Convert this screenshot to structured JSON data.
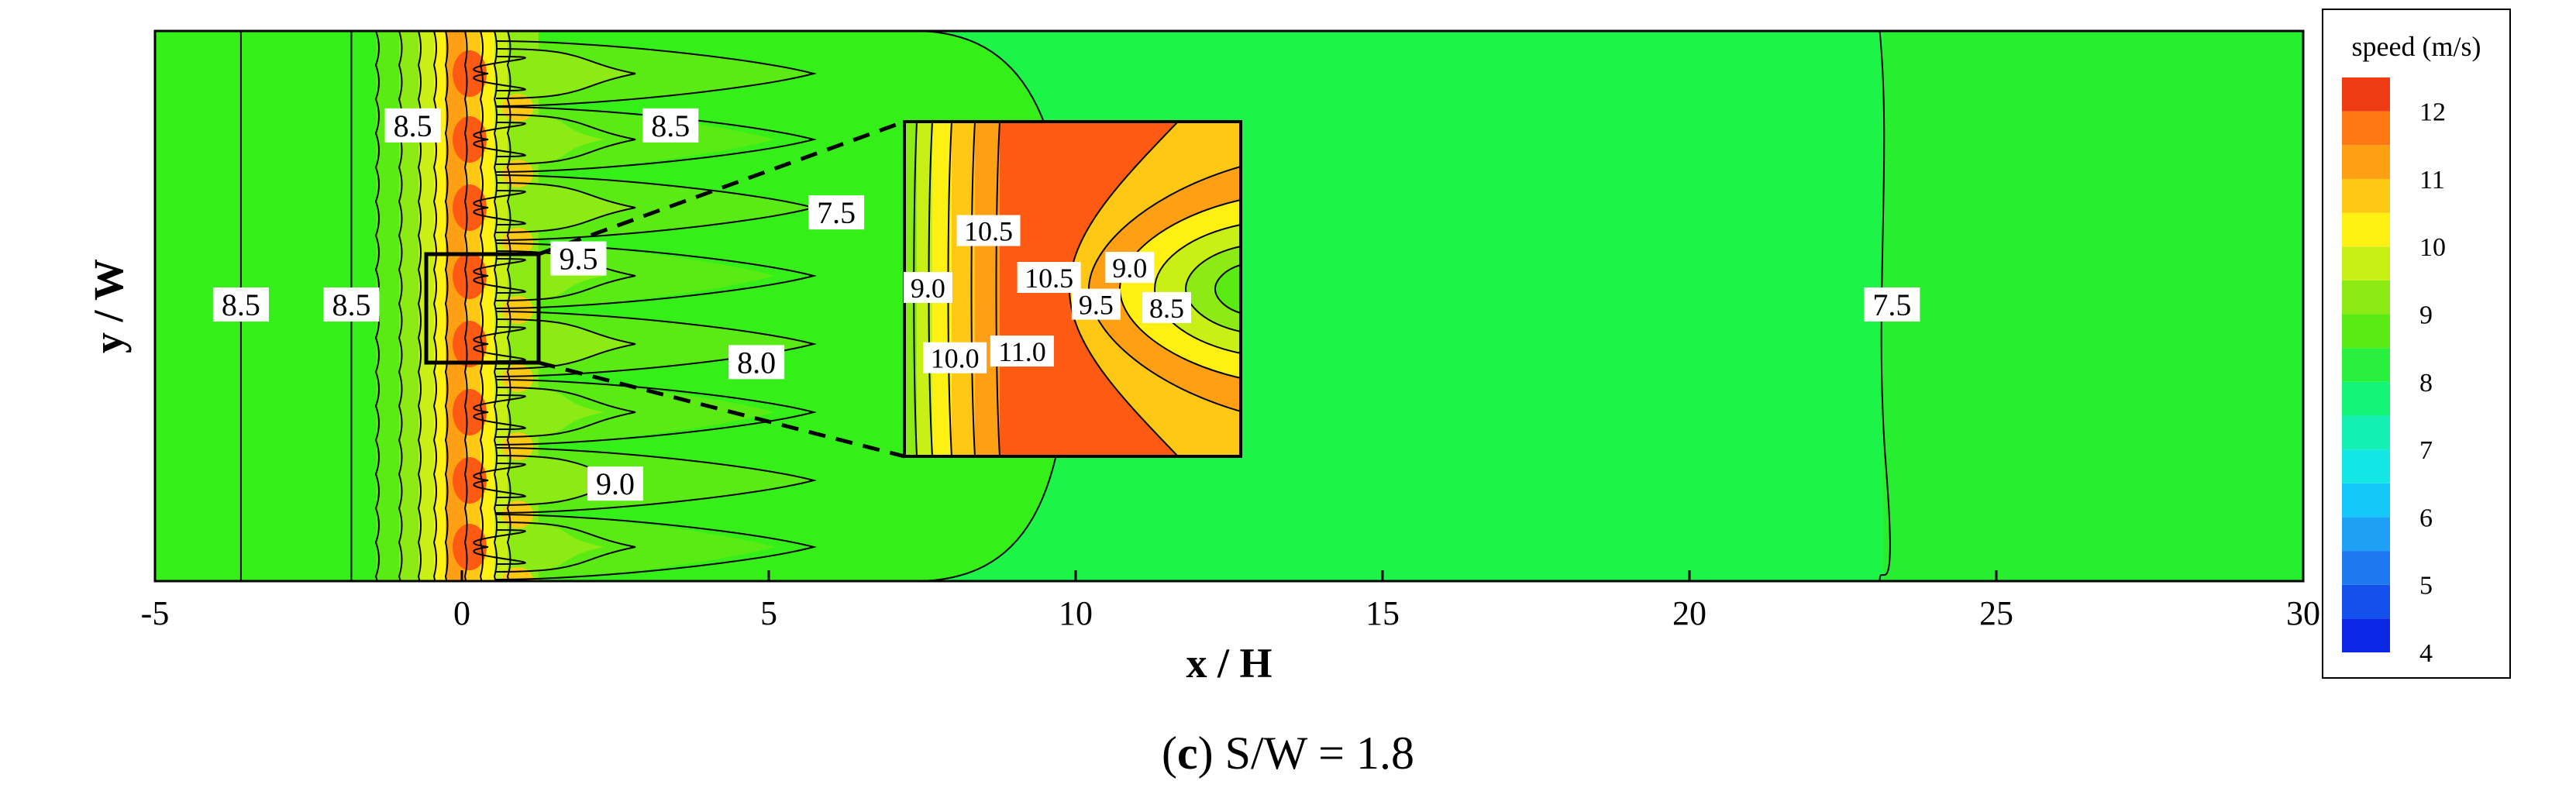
{
  "chart_data": {
    "type": "heatmap",
    "xlabel": "x / H",
    "ylabel": "y / W",
    "xlim": [
      -5,
      30
    ],
    "x_ticks": [
      "-5",
      "0",
      "5",
      "10",
      "15",
      "20",
      "25",
      "30"
    ],
    "colorbar": {
      "title": "speed (m/s)",
      "min": 4,
      "max": 12.5,
      "tick_labels": [
        "12",
        "11",
        "10",
        "9",
        "8",
        "7",
        "6",
        "5",
        "4"
      ],
      "levels": [
        {
          "lo": 4.0,
          "color": "#0a28e6"
        },
        {
          "lo": 4.5,
          "color": "#1450ec"
        },
        {
          "lo": 5.0,
          "color": "#1e78f0"
        },
        {
          "lo": 5.5,
          "color": "#1ea0f5"
        },
        {
          "lo": 6.0,
          "color": "#14c8fa"
        },
        {
          "lo": 6.5,
          "color": "#14e6e6"
        },
        {
          "lo": 7.0,
          "color": "#14f0b4"
        },
        {
          "lo": 7.5,
          "color": "#14f578"
        },
        {
          "lo": 8.0,
          "color": "#28f03c"
        },
        {
          "lo": 8.5,
          "color": "#5aeb14"
        },
        {
          "lo": 9.0,
          "color": "#8ceb14"
        },
        {
          "lo": 9.5,
          "color": "#c8f014"
        },
        {
          "lo": 10.0,
          "color": "#fff014"
        },
        {
          "lo": 10.5,
          "color": "#ffc814"
        },
        {
          "lo": 11.0,
          "color": "#ffa014"
        },
        {
          "lo": 11.5,
          "color": "#ff7814"
        },
        {
          "lo": 12.0,
          "color": "#f03c14"
        }
      ]
    },
    "main_contour_labels": [
      {
        "text": "8.5",
        "x": -3.6,
        "y": 0.0
      },
      {
        "text": "8.5",
        "x": -1.8,
        "y": 0.0
      },
      {
        "text": "8.5",
        "x": -0.8,
        "y": 1.4
      },
      {
        "text": "8.5",
        "x": 3.4,
        "y": 1.4
      },
      {
        "text": "7.5",
        "x": 6.1,
        "y": 0.72
      },
      {
        "text": "9.5",
        "x": 1.9,
        "y": 0.36
      },
      {
        "text": "8.0",
        "x": 4.8,
        "y": -0.45
      },
      {
        "text": "9.0",
        "x": 2.5,
        "y": -1.4
      },
      {
        "text": "7.5",
        "x": 23.3,
        "y": 0.0
      }
    ],
    "inset_contour_labels": [
      {
        "text": "10.5",
        "x": 0.25,
        "y": 0.67
      },
      {
        "text": "9.0",
        "x": 0.07,
        "y": 0.5
      },
      {
        "text": "10.5",
        "x": 0.43,
        "y": 0.53
      },
      {
        "text": "9.0",
        "x": 0.67,
        "y": 0.56
      },
      {
        "text": "9.5",
        "x": 0.57,
        "y": 0.45
      },
      {
        "text": "8.5",
        "x": 0.78,
        "y": 0.44
      },
      {
        "text": "10.0",
        "x": 0.15,
        "y": 0.29
      },
      {
        "text": "11.0",
        "x": 0.35,
        "y": 0.31
      }
    ]
  },
  "caption": {
    "label": "c",
    "text": " S/W = 1.8"
  }
}
